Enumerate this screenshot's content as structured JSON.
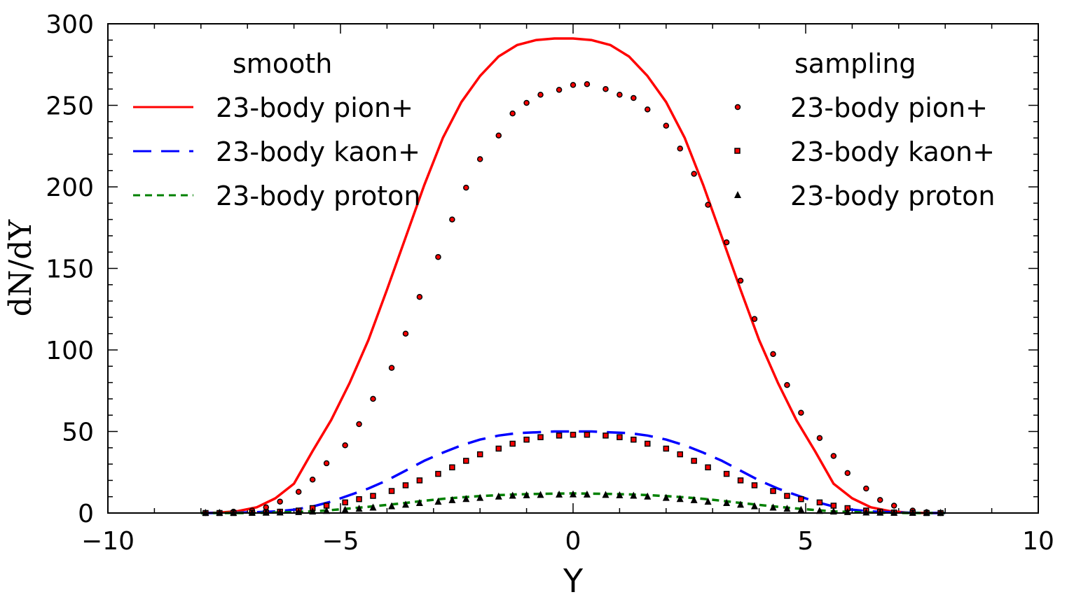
{
  "chart_data": {
    "type": "line",
    "xlabel": "Y",
    "ylabel": "dN/dY",
    "xlim": [
      -10,
      10
    ],
    "ylim": [
      0,
      300
    ],
    "x_ticks": [
      -10,
      -5,
      0,
      5,
      10
    ],
    "x_tick_labels": [
      "−10",
      "−5",
      "0",
      "5",
      "10"
    ],
    "y_ticks": [
      0,
      50,
      100,
      150,
      200,
      250,
      300
    ],
    "y_tick_labels": [
      "0",
      "50",
      "100",
      "150",
      "200",
      "250",
      "300"
    ],
    "grid": false,
    "legend_groups": [
      {
        "title": "smooth",
        "placement": "top-left"
      },
      {
        "title": "sampling",
        "placement": "top-right"
      }
    ],
    "series": [
      {
        "name": "23-body pion+",
        "group": "smooth",
        "style": "solid",
        "color": "#ff0000",
        "x": [
          -8.0,
          -7.6,
          -7.2,
          -6.8,
          -6.4,
          -6.0,
          -5.6,
          -5.2,
          -4.8,
          -4.4,
          -4.0,
          -3.6,
          -3.2,
          -2.8,
          -2.4,
          -2.0,
          -1.6,
          -1.2,
          -0.8,
          -0.4,
          0.0,
          0.4,
          0.8,
          1.2,
          1.6,
          2.0,
          2.4,
          2.8,
          3.2,
          3.6,
          4.0,
          4.4,
          4.8,
          5.2,
          5.6,
          6.0,
          6.4,
          6.8,
          7.2,
          7.6,
          8.0
        ],
        "y": [
          0.0,
          0.2,
          1.2,
          3.5,
          9.0,
          18.0,
          38.0,
          57.0,
          80.0,
          106.0,
          137.0,
          169.0,
          201.0,
          230.0,
          252.0,
          268.0,
          280.0,
          287.0,
          290.0,
          291.0,
          291.0,
          290.0,
          287.0,
          280.0,
          268.0,
          252.0,
          230.0,
          201.0,
          169.0,
          137.0,
          106.0,
          80.0,
          57.0,
          38.0,
          18.0,
          9.0,
          3.5,
          1.2,
          0.2,
          0.0,
          0.0
        ]
      },
      {
        "name": "23-body kaon+",
        "group": "smooth",
        "style": "dashed",
        "color": "#0000ff",
        "x": [
          -8.0,
          -7.6,
          -7.2,
          -6.8,
          -6.4,
          -6.0,
          -5.6,
          -5.2,
          -4.8,
          -4.4,
          -4.0,
          -3.6,
          -3.2,
          -2.8,
          -2.4,
          -2.0,
          -1.6,
          -1.2,
          -0.8,
          -0.4,
          0.0,
          0.4,
          0.8,
          1.2,
          1.6,
          2.0,
          2.4,
          2.8,
          3.2,
          3.6,
          4.0,
          4.4,
          4.8,
          5.2,
          5.6,
          6.0,
          6.4,
          6.8,
          7.2,
          7.6,
          8.0
        ],
        "y": [
          0.0,
          0.0,
          0.2,
          0.5,
          1.0,
          2.0,
          4.0,
          7.0,
          11.0,
          15.0,
          20.0,
          26.0,
          32.0,
          37.0,
          41.5,
          45.0,
          47.5,
          49.0,
          49.5,
          50.0,
          50.0,
          50.0,
          49.5,
          49.0,
          47.5,
          45.0,
          41.5,
          37.0,
          32.0,
          26.0,
          20.0,
          15.0,
          11.0,
          7.0,
          4.0,
          2.0,
          1.0,
          0.5,
          0.2,
          0.0,
          0.0
        ]
      },
      {
        "name": "23-body proton",
        "group": "smooth",
        "style": "dashed",
        "color": "#008000",
        "x": [
          -8.0,
          -7.6,
          -7.2,
          -6.8,
          -6.4,
          -6.0,
          -5.6,
          -5.2,
          -4.8,
          -4.4,
          -4.0,
          -3.6,
          -3.2,
          -2.8,
          -2.4,
          -2.0,
          -1.6,
          -1.2,
          -0.8,
          -0.4,
          0.0,
          0.4,
          0.8,
          1.2,
          1.6,
          2.0,
          2.4,
          2.8,
          3.2,
          3.6,
          4.0,
          4.4,
          4.8,
          5.2,
          5.6,
          6.0,
          6.4,
          6.8,
          7.2,
          7.6,
          8.0
        ],
        "y": [
          0.0,
          0.0,
          0.0,
          0.1,
          0.3,
          0.6,
          1.0,
          1.8,
          2.8,
          3.8,
          5.0,
          6.2,
          7.5,
          8.7,
          9.6,
          10.4,
          11.0,
          11.4,
          11.7,
          11.9,
          12.0,
          11.9,
          11.7,
          11.4,
          11.0,
          10.4,
          9.6,
          8.7,
          7.5,
          6.2,
          5.0,
          3.8,
          2.8,
          1.8,
          1.0,
          0.6,
          0.3,
          0.1,
          0.0,
          0.0,
          0.0
        ]
      },
      {
        "name": "23-body pion+",
        "group": "sampling",
        "style": "marker-circle",
        "color": "#ff0000",
        "x": [
          -7.9,
          -7.6,
          -7.3,
          -6.9,
          -6.6,
          -6.3,
          -5.9,
          -5.6,
          -5.3,
          -4.9,
          -4.6,
          -4.3,
          -3.9,
          -3.6,
          -3.3,
          -2.9,
          -2.6,
          -2.3,
          -2.0,
          -1.6,
          -1.3,
          -1.0,
          -0.7,
          -0.3,
          0.0,
          0.3,
          0.7,
          1.0,
          1.3,
          1.6,
          2.0,
          2.3,
          2.6,
          2.9,
          3.3,
          3.6,
          3.9,
          4.3,
          4.6,
          4.9,
          5.3,
          5.6,
          5.9,
          6.3,
          6.6,
          6.9,
          7.3,
          7.6,
          7.9
        ],
        "y": [
          0.0,
          0.1,
          0.8,
          1.5,
          3.5,
          7.0,
          13.0,
          20.5,
          30.5,
          41.5,
          54.5,
          70.0,
          89.0,
          110.0,
          132.5,
          157.0,
          180.0,
          199.5,
          217.0,
          231.5,
          245.0,
          251.5,
          256.5,
          259.5,
          262.5,
          263.0,
          260.0,
          256.5,
          254.5,
          247.5,
          237.5,
          223.5,
          208.0,
          189.0,
          166.0,
          142.5,
          119.0,
          97.5,
          78.5,
          61.5,
          46.0,
          35.0,
          24.5,
          15.0,
          8.0,
          4.5,
          1.5,
          0.5,
          0.0
        ]
      },
      {
        "name": "23-body kaon+",
        "group": "sampling",
        "style": "marker-square",
        "color": "#ff0000",
        "x": [
          -7.9,
          -7.6,
          -7.3,
          -6.9,
          -6.6,
          -6.3,
          -5.9,
          -5.6,
          -5.3,
          -4.9,
          -4.6,
          -4.3,
          -3.9,
          -3.6,
          -3.3,
          -2.9,
          -2.6,
          -2.3,
          -2.0,
          -1.6,
          -1.3,
          -1.0,
          -0.7,
          -0.3,
          0.0,
          0.3,
          0.7,
          1.0,
          1.3,
          1.6,
          2.0,
          2.3,
          2.6,
          2.9,
          3.3,
          3.6,
          3.9,
          4.3,
          4.6,
          4.9,
          5.3,
          5.6,
          5.9,
          6.3,
          6.6,
          6.9,
          7.3,
          7.6,
          7.9
        ],
        "y": [
          0.0,
          0.0,
          0.0,
          0.1,
          0.3,
          0.8,
          1.5,
          3.0,
          4.5,
          6.5,
          8.5,
          10.5,
          13.5,
          17.0,
          20.0,
          24.0,
          28.0,
          32.0,
          36.0,
          39.5,
          42.5,
          45.0,
          46.5,
          47.5,
          48.0,
          48.0,
          47.5,
          46.5,
          45.0,
          42.5,
          39.5,
          36.0,
          32.0,
          28.0,
          24.0,
          20.0,
          17.0,
          13.5,
          10.5,
          8.5,
          6.5,
          4.5,
          3.0,
          1.5,
          0.8,
          0.3,
          0.1,
          0.0,
          0.0
        ]
      },
      {
        "name": "23-body proton",
        "group": "sampling",
        "style": "marker-triangle",
        "color": "#000000",
        "x": [
          -7.9,
          -7.6,
          -7.3,
          -6.9,
          -6.6,
          -6.3,
          -5.9,
          -5.6,
          -5.3,
          -4.9,
          -4.6,
          -4.3,
          -3.9,
          -3.6,
          -3.3,
          -2.9,
          -2.6,
          -2.3,
          -2.0,
          -1.6,
          -1.3,
          -1.0,
          -0.7,
          -0.3,
          0.0,
          0.3,
          0.7,
          1.0,
          1.3,
          1.6,
          2.0,
          2.3,
          2.6,
          2.9,
          3.3,
          3.6,
          3.9,
          4.3,
          4.6,
          4.9,
          5.3,
          5.6,
          5.9,
          6.3,
          6.6,
          6.9,
          7.3,
          7.6,
          7.9
        ],
        "y": [
          0.0,
          0.0,
          0.0,
          0.0,
          0.1,
          0.2,
          0.5,
          0.8,
          1.2,
          1.8,
          2.5,
          3.2,
          4.0,
          5.0,
          6.0,
          6.8,
          7.8,
          8.5,
          9.2,
          10.0,
          10.5,
          10.8,
          11.0,
          11.2,
          11.3,
          11.2,
          11.0,
          10.8,
          10.5,
          10.0,
          9.2,
          8.5,
          7.8,
          6.8,
          6.0,
          5.0,
          4.0,
          3.2,
          2.5,
          1.8,
          1.2,
          0.8,
          0.5,
          0.2,
          0.1,
          0.0,
          0.0,
          0.0,
          0.0
        ]
      }
    ]
  }
}
